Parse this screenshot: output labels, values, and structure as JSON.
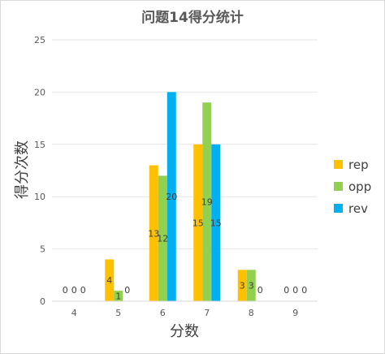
{
  "chart_data": {
    "type": "bar",
    "title": "问题14得分统计",
    "xlabel": "分数",
    "ylabel": "得分次数",
    "categories": [
      "4",
      "5",
      "6",
      "7",
      "8",
      "9"
    ],
    "series": [
      {
        "name": "rep",
        "values": [
          0,
          4,
          13,
          15,
          3,
          0
        ],
        "color": "#FFC000"
      },
      {
        "name": "opp",
        "values": [
          0,
          1,
          12,
          19,
          3,
          0
        ],
        "color": "#92D050"
      },
      {
        "name": "rev",
        "values": [
          0,
          0,
          20,
          15,
          0,
          0
        ],
        "color": "#00B0F0"
      }
    ],
    "ylim": [
      0,
      25
    ],
    "yticks": [
      0,
      5,
      10,
      15,
      20,
      25
    ],
    "grid": true,
    "legend_position": "right",
    "data_labels": true
  }
}
